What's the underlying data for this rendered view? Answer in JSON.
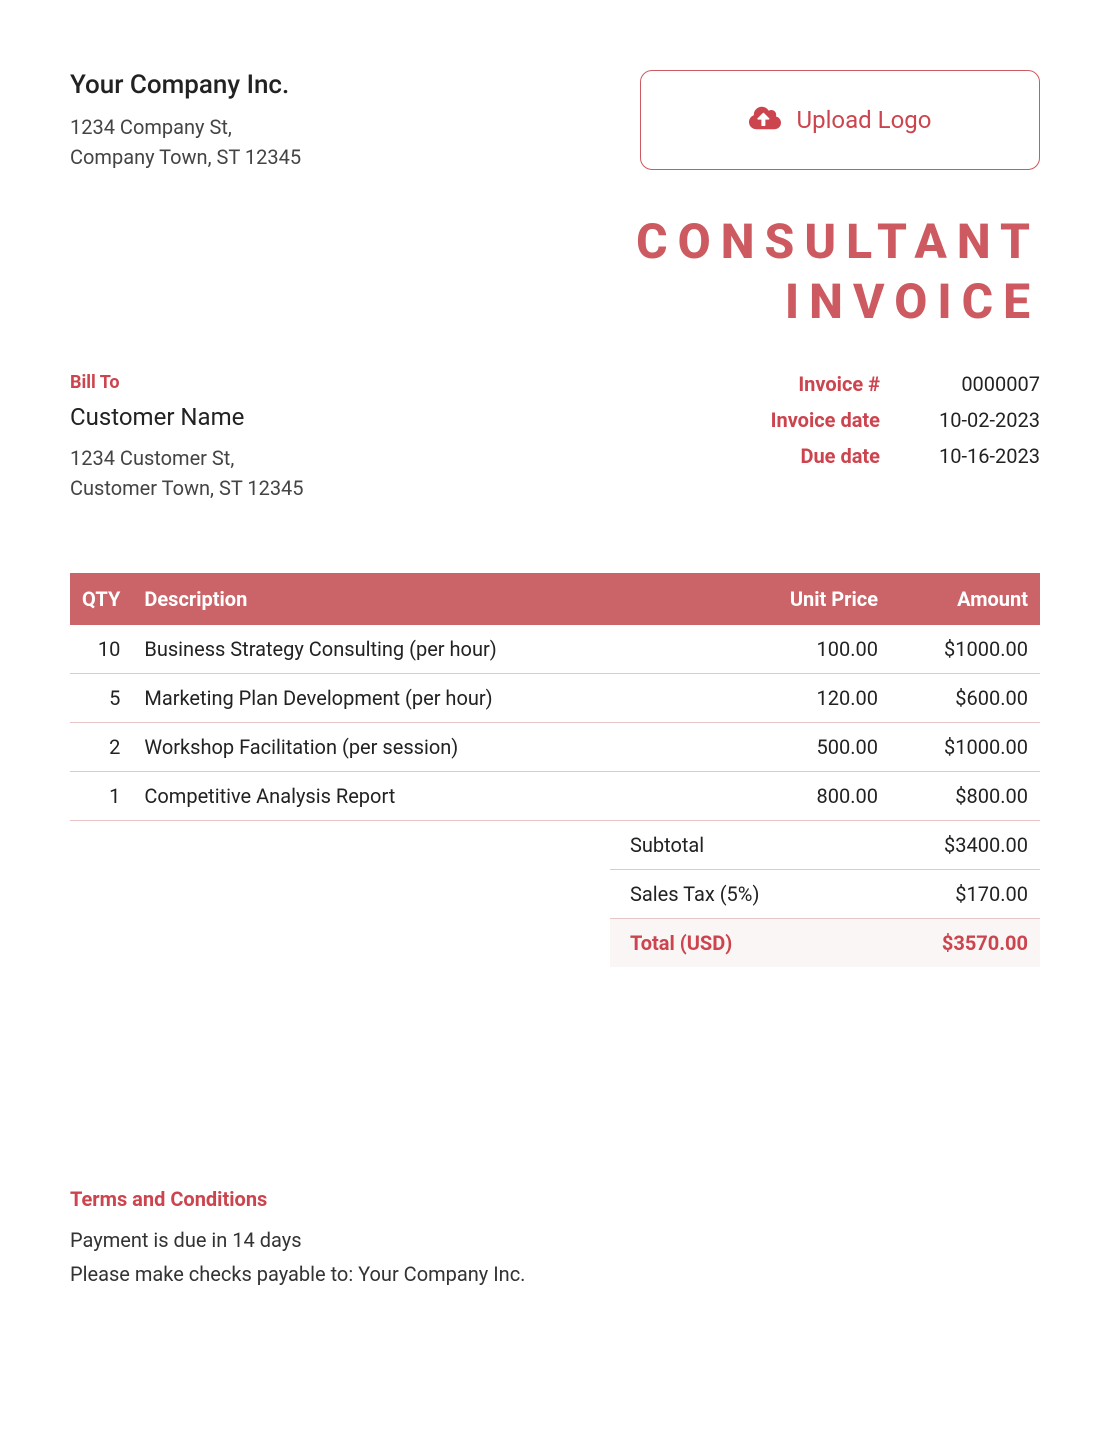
{
  "colors": {
    "accent": "#cc444d",
    "accent_light": "#cc5a60",
    "header_bg": "#cb6468",
    "row_border": "#e8c6c8",
    "total_bg": "#faf6f5",
    "text": "#222222",
    "white": "#ffffff"
  },
  "company": {
    "name": "Your Company Inc.",
    "address_line1": "1234 Company St,",
    "address_line2": "Company Town, ST 12345"
  },
  "upload": {
    "label": "Upload Logo"
  },
  "title_line1": "CONSULTANT",
  "title_line2": "INVOICE",
  "bill_to": {
    "heading": "Bill To",
    "name": "Customer Name",
    "address_line1": "1234 Customer St,",
    "address_line2": "Customer Town, ST 12345"
  },
  "meta": {
    "invoice_number_label": "Invoice #",
    "invoice_number": "0000007",
    "invoice_date_label": "Invoice date",
    "invoice_date": "10-02-2023",
    "due_date_label": "Due date",
    "due_date": "10-16-2023"
  },
  "table": {
    "headers": {
      "qty": "QTY",
      "description": "Description",
      "unit_price": "Unit Price",
      "amount": "Amount"
    },
    "rows": [
      {
        "qty": "10",
        "description": "Business Strategy Consulting (per hour)",
        "unit_price": "100.00",
        "amount": "$1000.00"
      },
      {
        "qty": "5",
        "description": "Marketing Plan Development (per hour)",
        "unit_price": "120.00",
        "amount": "$600.00"
      },
      {
        "qty": "2",
        "description": "Workshop Facilitation (per session)",
        "unit_price": "500.00",
        "amount": "$1000.00"
      },
      {
        "qty": "1",
        "description": "Competitive Analysis Report",
        "unit_price": "800.00",
        "amount": "$800.00"
      }
    ]
  },
  "totals": {
    "subtotal_label": "Subtotal",
    "subtotal": "$3400.00",
    "tax_label": "Sales Tax (5%)",
    "tax": "$170.00",
    "grand_label": "Total (USD)",
    "grand": "$3570.00"
  },
  "terms": {
    "heading": "Terms and Conditions",
    "line1": "Payment is due in 14 days",
    "line2": "Please make checks payable to: Your Company Inc."
  }
}
